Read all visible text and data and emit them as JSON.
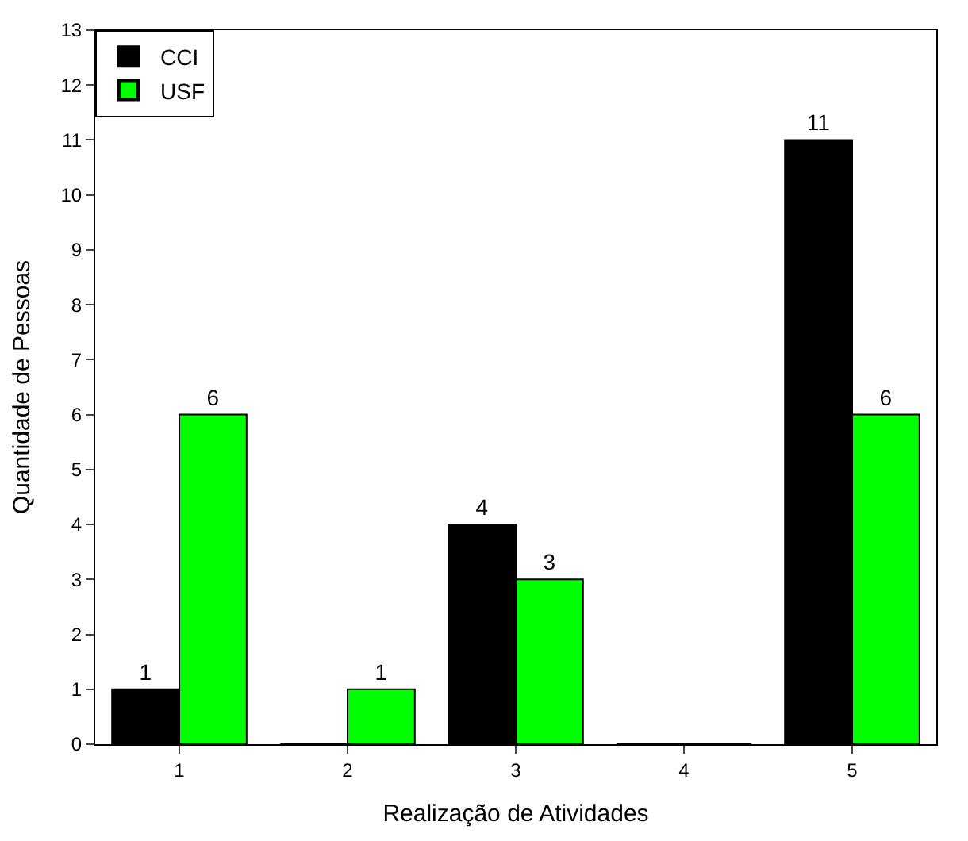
{
  "chart_data": {
    "type": "bar",
    "xlabel": "Realização de Atividades",
    "ylabel": "Quantidade de Pessoas",
    "categories": [
      "1",
      "2",
      "3",
      "4",
      "5"
    ],
    "series": [
      {
        "name": "CCI",
        "color": "#000000",
        "values": [
          1,
          0,
          4,
          0,
          11
        ],
        "value_labels": [
          "1",
          null,
          "4",
          null,
          "11"
        ]
      },
      {
        "name": "USF",
        "color": "#00ff00",
        "values": [
          6,
          1,
          3,
          0,
          6
        ],
        "value_labels": [
          "6",
          "1",
          "3",
          null,
          "6"
        ]
      }
    ],
    "ylim": [
      0,
      13
    ],
    "yticks": [
      0,
      1,
      2,
      3,
      4,
      5,
      6,
      7,
      8,
      9,
      10,
      11,
      12,
      13
    ],
    "legend": "top left"
  }
}
